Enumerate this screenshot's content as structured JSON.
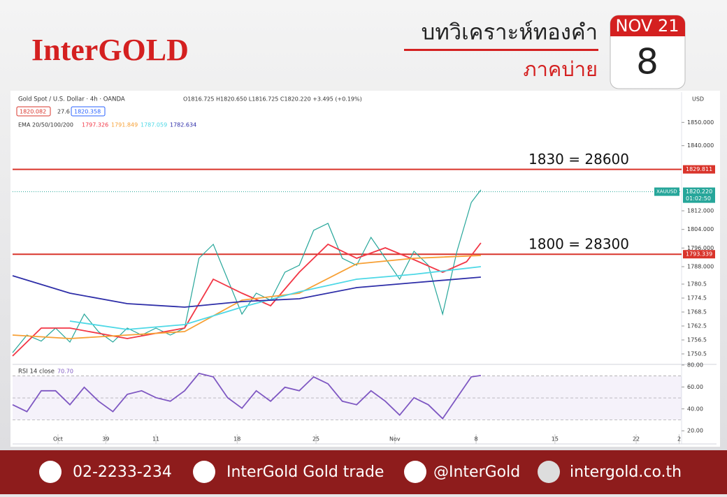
{
  "header": {
    "brand": "InterGOLD",
    "title": "บทวิเคราะห์ทองคำ",
    "subtitle": "ภาคบ่าย",
    "month": "NOV 21",
    "day": "8"
  },
  "footer": {
    "phone": "02-2233-234",
    "facebook": "InterGold Gold trade",
    "line": "@InterGold",
    "web": "intergold.co.th"
  },
  "chart_data": [
    {
      "type": "line",
      "title": "Gold Spot / U.S. Dollar · 4h · OANDA",
      "ohlc": "O1816.725 H1820.650 L1816.725 C1820.220 +3.495 (+0.19%)",
      "quote": [
        1820.082,
        27.6,
        1820.358
      ],
      "currency": "USD",
      "legend_title": "EMA 20/50/100/200",
      "xlim": [
        0,
        280
      ],
      "xticks": [
        {
          "value": 19,
          "label": "Oct"
        },
        39,
        {
          "value": 60,
          "label": "11"
        },
        {
          "value": 94,
          "label": "18"
        },
        {
          "value": 127,
          "label": "25"
        },
        {
          "value": 160,
          "label": "Nov"
        },
        {
          "value": 194,
          "label": "8"
        },
        {
          "value": 227,
          "label": "15"
        },
        {
          "value": 261,
          "label": "22"
        },
        {
          "value": 279,
          "label": "2"
        }
      ],
      "ylim": [
        1746,
        1863
      ],
      "yticks": [
        {
          "value": 1850,
          "label": "1850.000"
        },
        {
          "value": 1840,
          "label": "1840.000"
        },
        {
          "value": 1812,
          "label": "1812.000"
        },
        {
          "value": 1804,
          "label": "1804.000"
        },
        {
          "value": 1796,
          "label": "1796.000"
        },
        {
          "value": 1788,
          "label": "1788.000"
        },
        1780.5,
        1774.5,
        1768.5,
        1762.5,
        1756.5,
        1750.5
      ],
      "levels": [
        {
          "value": 1829.811,
          "note": "1830 = 28600"
        },
        {
          "value": 1793.339,
          "note": "1800 = 28300"
        }
      ],
      "last_price": {
        "symbol": "XAUUSD",
        "value": 1820.22,
        "label": "1820.220",
        "timer": "01:02:50"
      },
      "series": [
        {
          "color": "#26a69a",
          "x": [
            0,
            6,
            12,
            18,
            24,
            30,
            36,
            42,
            48,
            54,
            60,
            66,
            72,
            78,
            84,
            90,
            96,
            102,
            108,
            114,
            120,
            126,
            132,
            138,
            144,
            150,
            156,
            162,
            168,
            174,
            180,
            186,
            192,
            196
          ],
          "values": [
            1751,
            1758.6,
            1756,
            1761.6,
            1755.6,
            1767.6,
            1760,
            1755.6,
            1761.6,
            1758.6,
            1761.6,
            1758.6,
            1761.6,
            1791.6,
            1797.6,
            1782.6,
            1767.6,
            1776.6,
            1773.6,
            1785.6,
            1788.6,
            1803.6,
            1806.6,
            1791.6,
            1788.6,
            1800.6,
            1791.6,
            1782.6,
            1794.6,
            1788.6,
            1767.6,
            1794.6,
            1815.6,
            1821
          ]
        },
        {
          "color": "#f23645",
          "last": 1797.326,
          "x": [
            0,
            12,
            24,
            48,
            72,
            84,
            96,
            108,
            120,
            132,
            144,
            156,
            168,
            180,
            190,
            196
          ],
          "values": [
            1749.6,
            1761.6,
            1761.6,
            1757.1,
            1761.6,
            1782.6,
            1776.6,
            1771.2,
            1785.6,
            1797.6,
            1791.6,
            1796.1,
            1791,
            1785.6,
            1790.1,
            1798.2
          ]
        },
        {
          "color": "#f7a035",
          "last": 1791.849,
          "x": [
            0,
            24,
            48,
            72,
            96,
            120,
            144,
            168,
            196
          ],
          "values": [
            1758.6,
            1757.1,
            1758.6,
            1760.1,
            1773.6,
            1776.6,
            1789.2,
            1791.6,
            1792.8
          ]
        },
        {
          "color": "#4dd8e6",
          "last": 1787.059,
          "x": [
            24,
            48,
            72,
            96,
            120,
            144,
            168,
            196
          ],
          "values": [
            1764.6,
            1761,
            1763.1,
            1770.6,
            1777.2,
            1782.6,
            1784.7,
            1788
          ]
        },
        {
          "color": "#2e2ea8",
          "last": 1782.634,
          "x": [
            0,
            24,
            48,
            72,
            96,
            120,
            144,
            168,
            196
          ],
          "values": [
            1784.1,
            1776.6,
            1772.1,
            1770.6,
            1773,
            1774.2,
            1779,
            1781.1,
            1783.5
          ]
        }
      ]
    },
    {
      "type": "line",
      "title": "RSI 14 close",
      "last": 70.7,
      "last_label": "70.70",
      "xlim": [
        0,
        280
      ],
      "ylim": [
        8,
        80.6
      ],
      "yticks": [
        {
          "value": 80,
          "label": "80.00"
        },
        {
          "value": 60,
          "label": "60.00"
        },
        {
          "value": 40,
          "label": "40.00"
        },
        {
          "value": 20,
          "label": "20.00"
        }
      ],
      "bands": [
        30,
        50,
        70
      ],
      "series": [
        {
          "color": "#7e57c2",
          "x": [
            0,
            6,
            12,
            18,
            24,
            30,
            36,
            42,
            48,
            54,
            60,
            66,
            72,
            78,
            84,
            90,
            96,
            102,
            108,
            114,
            120,
            126,
            132,
            138,
            144,
            150,
            156,
            162,
            168,
            174,
            180,
            186,
            192,
            196
          ],
          "values": [
            43.8,
            37.5,
            56.5,
            56.5,
            43.8,
            59.7,
            47,
            37.5,
            53.3,
            56.5,
            50.2,
            47,
            56.5,
            72.4,
            69.2,
            50.2,
            40.6,
            56.5,
            47,
            59.7,
            56.5,
            69.2,
            62.9,
            47,
            43.8,
            56.5,
            47,
            34.3,
            50.2,
            43.8,
            31.1,
            50.2,
            69.2,
            70.5
          ]
        }
      ]
    }
  ]
}
